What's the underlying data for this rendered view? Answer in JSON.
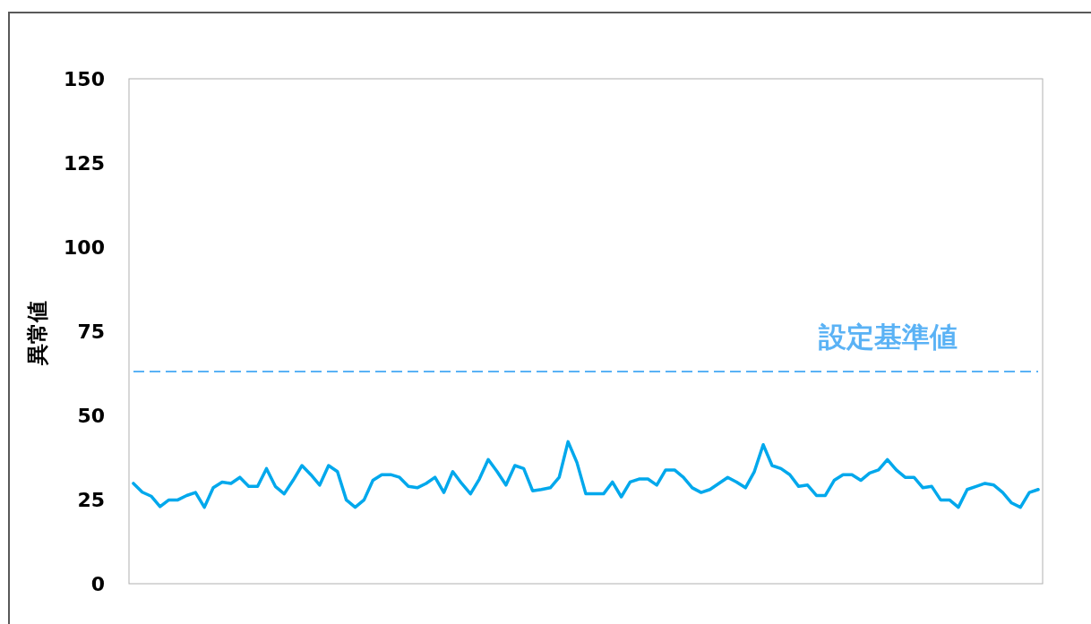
{
  "chart_data": {
    "type": "line",
    "ylabel": "異常値",
    "color": "#00a8ec",
    "line_style": "solid",
    "marker": "none",
    "grid": false,
    "tick_labels": "y",
    "ylim": [
      0,
      150
    ],
    "yticks": [
      0,
      25,
      50,
      75,
      100,
      125,
      150
    ],
    "ref_lines": [
      {
        "axis": "y",
        "value": 63,
        "label": "設定基準値",
        "color": "#5ab2f5",
        "line_style": "dashed"
      }
    ],
    "categories": [
      null,
      null,
      null,
      null,
      null,
      null,
      null,
      null,
      null,
      null,
      null,
      null,
      null,
      null,
      null,
      null,
      null,
      null,
      null,
      null,
      null,
      null,
      null,
      null,
      null,
      null,
      null,
      null,
      null,
      null,
      null,
      null,
      null,
      null,
      null,
      null,
      null,
      null,
      null,
      null,
      null,
      null,
      null,
      null,
      null,
      null,
      null,
      null,
      null,
      null,
      null,
      null,
      null,
      null,
      null,
      null,
      null,
      null,
      null,
      null,
      null,
      null,
      null,
      null,
      null,
      null,
      null,
      null,
      null,
      null,
      null,
      null,
      null,
      null,
      null,
      null,
      null,
      null,
      null,
      null,
      null,
      null,
      null,
      null,
      null,
      null,
      null,
      null,
      null,
      null,
      null,
      null,
      null,
      null,
      null,
      null,
      null,
      null,
      null,
      null,
      null,
      null,
      null
    ],
    "values": [
      29.8,
      27.2,
      26.0,
      22.9,
      24.9,
      24.9,
      26.2,
      27.1,
      22.7,
      28.5,
      30.2,
      29.8,
      31.6,
      28.9,
      28.9,
      34.2,
      28.9,
      26.7,
      30.7,
      35.1,
      32.4,
      29.3,
      35.1,
      33.3,
      24.9,
      22.7,
      24.9,
      30.7,
      32.4,
      32.4,
      31.6,
      28.9,
      28.5,
      29.8,
      31.6,
      27.1,
      33.3,
      29.8,
      26.7,
      31.1,
      36.9,
      33.3,
      29.3,
      35.1,
      34.2,
      27.6,
      28.0,
      28.5,
      31.6,
      42.2,
      36.0,
      26.7,
      26.7,
      26.7,
      30.2,
      25.8,
      30.2,
      31.1,
      31.1,
      29.3,
      33.8,
      33.8,
      31.6,
      28.5,
      27.1,
      28.0,
      29.8,
      31.6,
      30.2,
      28.5,
      33.3,
      41.3,
      35.1,
      34.2,
      32.4,
      28.9,
      29.3,
      26.2,
      26.2,
      30.7,
      32.4,
      32.4,
      30.7,
      32.9,
      33.8,
      36.9,
      33.8,
      31.6,
      31.6,
      28.5,
      28.9,
      24.9,
      24.9,
      22.7,
      28.0,
      28.9,
      29.8,
      29.3,
      27.1,
      24.0,
      22.7,
      27.1,
      28.0
    ]
  }
}
